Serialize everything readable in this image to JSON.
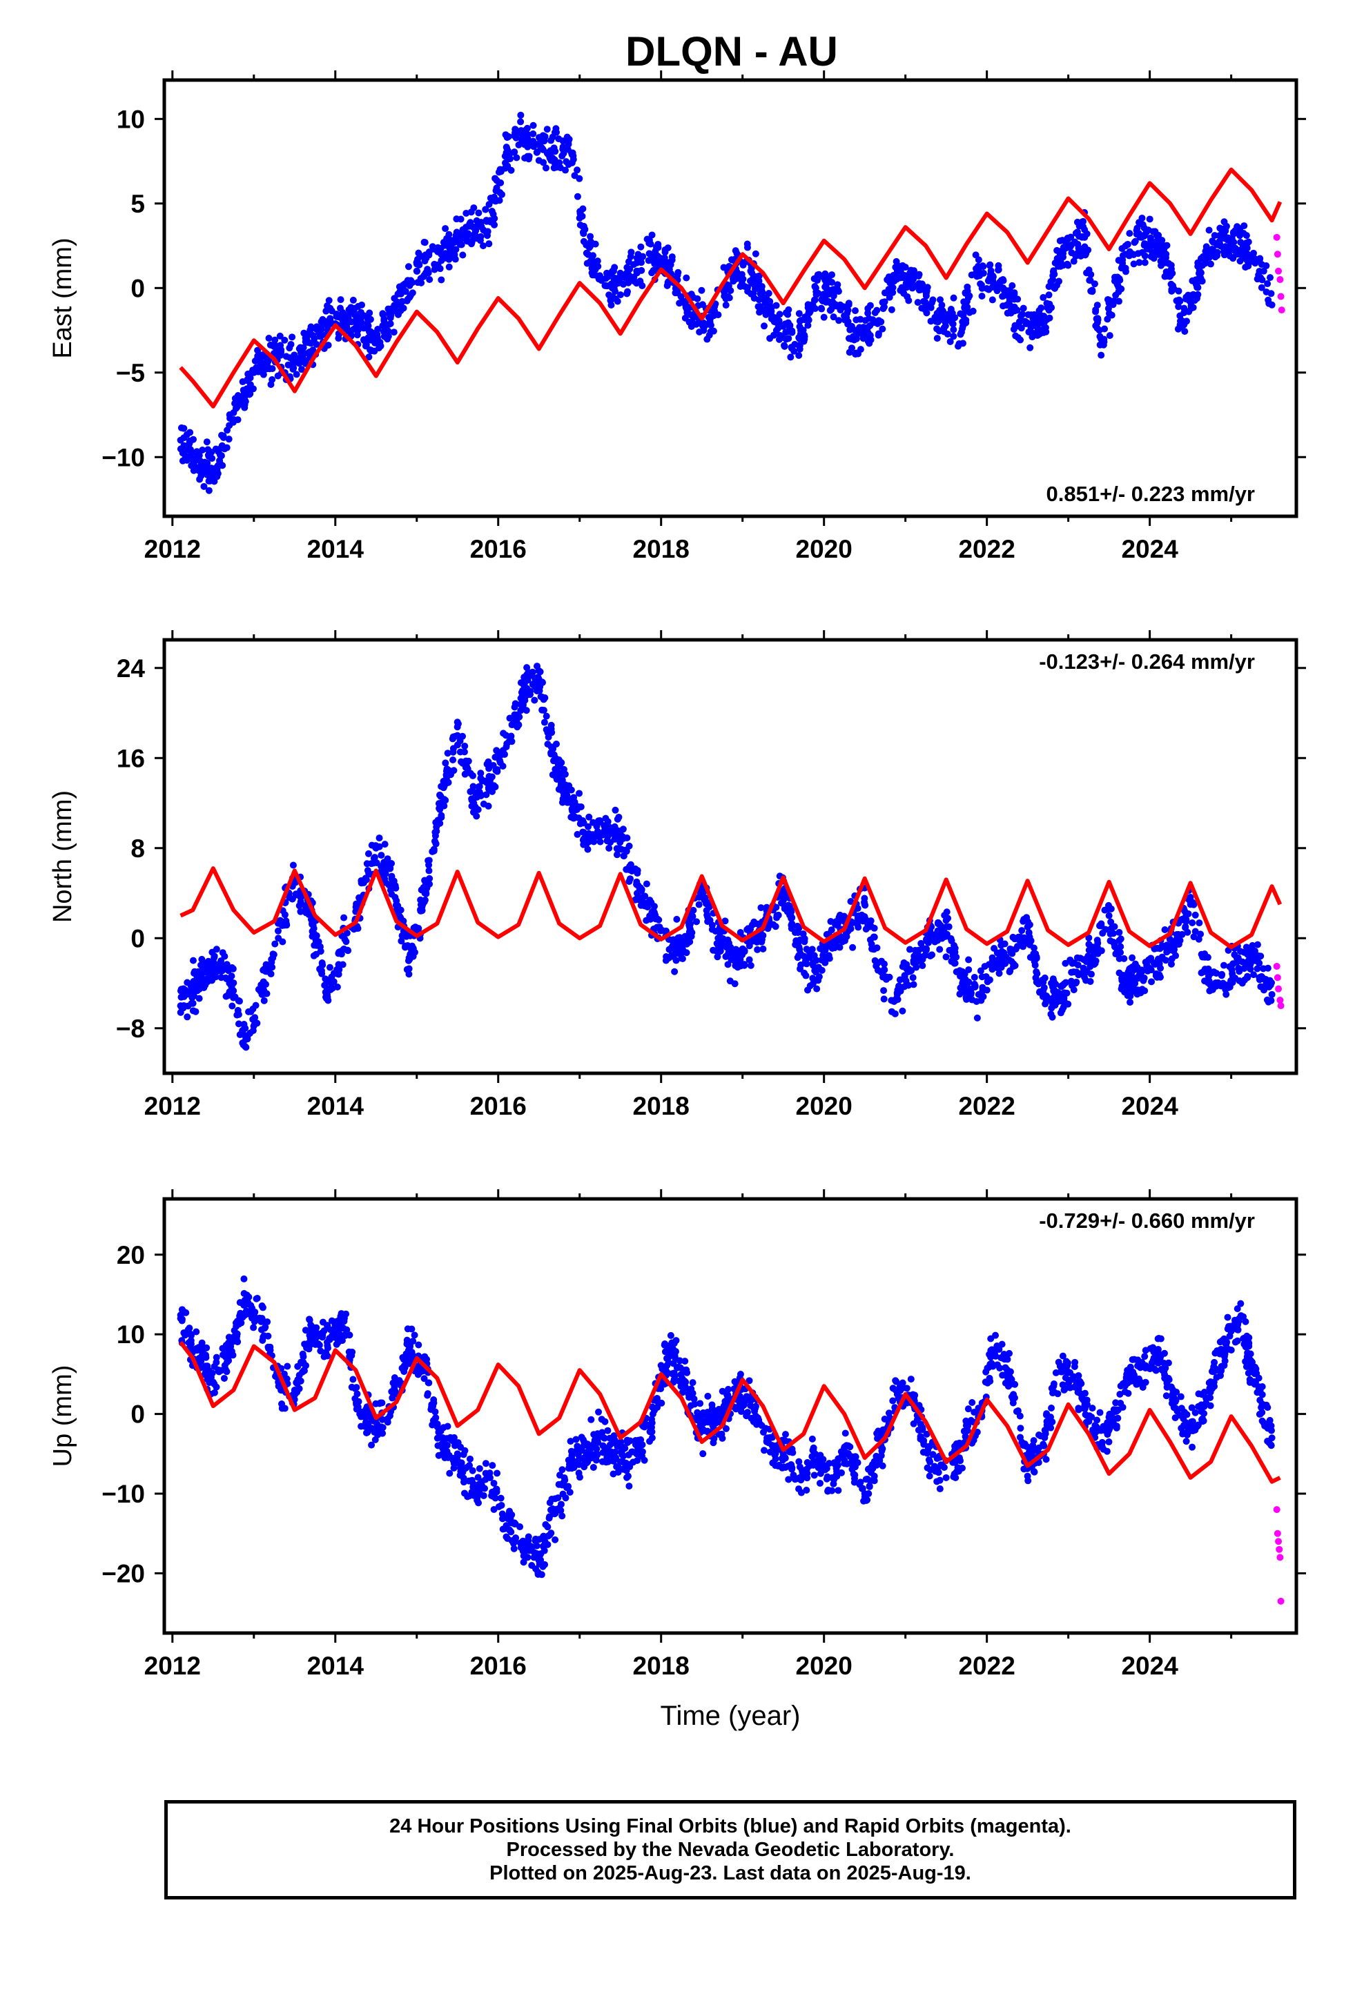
{
  "title": "DLQN - AU",
  "caption_lines": [
    "24 Hour Positions Using Final Orbits (blue) and Rapid Orbits (magenta).",
    "Processed by the Nevada Geodetic Laboratory.",
    "Plotted on 2025-Aug-23. Last data on 2025-Aug-19."
  ],
  "colors": {
    "final": "#0000ff",
    "rapid": "#ff00ff",
    "model": "#ff0000",
    "frame": "#000000"
  },
  "chart_data": [
    {
      "type": "scatter",
      "name": "east",
      "xlabel": "",
      "ylabel": "East (mm)",
      "xlim": [
        2011.9,
        2025.8
      ],
      "ylim": [
        -13.5,
        12.3
      ],
      "x_ticks": [
        2012,
        2014,
        2016,
        2018,
        2020,
        2022,
        2024
      ],
      "y_ticks": [
        -10,
        -5,
        0,
        5,
        10
      ],
      "annotation": "0.851+/- 0.223 mm/yr",
      "annotation_pos": "bottom-right",
      "series": [
        {
          "name": "final",
          "color": "#0000ff",
          "x": [
            2012.1,
            2012.3,
            2012.5,
            2012.8,
            2013.0,
            2013.3,
            2013.6,
            2013.9,
            2014.2,
            2014.5,
            2014.8,
            2015.0,
            2015.3,
            2015.6,
            2015.9,
            2016.1,
            2016.3,
            2016.6,
            2016.9,
            2017.1,
            2017.4,
            2017.7,
            2017.9,
            2018.1,
            2018.3,
            2018.6,
            2018.9,
            2019.1,
            2019.4,
            2019.7,
            2019.9,
            2020.2,
            2020.4,
            2020.7,
            2020.9,
            2021.2,
            2021.4,
            2021.7,
            2021.9,
            2022.2,
            2022.4,
            2022.7,
            2022.9,
            2023.2,
            2023.4,
            2023.7,
            2023.9,
            2024.2,
            2024.4,
            2024.7,
            2024.9,
            2025.2,
            2025.4,
            2025.5
          ],
          "y": [
            -9,
            -10,
            -11,
            -7,
            -5,
            -4,
            -4,
            -2,
            -2,
            -3,
            -1,
            1,
            2,
            3,
            4,
            8,
            9,
            8,
            8,
            2,
            0,
            1,
            2,
            1,
            -1,
            -2,
            1,
            1,
            -2,
            -3,
            0,
            -1,
            -3,
            -2,
            1,
            0,
            -2,
            -2,
            1,
            0,
            -2,
            -2,
            2,
            3,
            -3,
            2,
            3,
            2,
            -2,
            2,
            3,
            2,
            1,
            -1
          ]
        },
        {
          "name": "rapid",
          "color": "#ff00ff",
          "x": [
            2025.56,
            2025.57,
            2025.58,
            2025.6,
            2025.61,
            2025.62
          ],
          "y": [
            3,
            2,
            1,
            0.5,
            -0.5,
            -1.3
          ]
        }
      ],
      "model": {
        "x": [
          2012.1,
          2012.25,
          2012.5,
          2012.75,
          2013.0,
          2013.25,
          2013.5,
          2013.75,
          2014.0,
          2014.25,
          2014.5,
          2014.75,
          2015.0,
          2015.25,
          2015.5,
          2015.75,
          2016.0,
          2016.25,
          2016.5,
          2016.75,
          2017.0,
          2017.25,
          2017.5,
          2017.75,
          2018.0,
          2018.25,
          2018.5,
          2018.75,
          2019.0,
          2019.25,
          2019.5,
          2019.75,
          2020.0,
          2020.25,
          2020.5,
          2020.75,
          2021.0,
          2021.25,
          2021.5,
          2021.75,
          2022.0,
          2022.25,
          2022.5,
          2022.75,
          2023.0,
          2023.25,
          2023.5,
          2023.75,
          2024.0,
          2024.25,
          2024.5,
          2024.75,
          2025.0,
          2025.25,
          2025.5,
          2025.6
        ],
        "y": [
          -4.7,
          -5.5,
          -7.0,
          -5.0,
          -3.1,
          -4.2,
          -6.1,
          -4.0,
          -2.2,
          -3.4,
          -5.2,
          -3.2,
          -1.4,
          -2.6,
          -4.4,
          -2.4,
          -0.6,
          -1.8,
          -3.6,
          -1.6,
          0.3,
          -0.9,
          -2.7,
          -0.7,
          1.1,
          0.0,
          -1.8,
          0.2,
          2.0,
          0.9,
          -0.9,
          1.0,
          2.8,
          1.7,
          0.0,
          1.8,
          3.6,
          2.5,
          0.6,
          2.6,
          4.4,
          3.3,
          1.5,
          3.4,
          5.3,
          4.1,
          2.3,
          4.3,
          6.2,
          5.0,
          3.2,
          5.2,
          7.0,
          5.8,
          4.0,
          5.1
        ]
      }
    },
    {
      "type": "scatter",
      "name": "north",
      "xlabel": "",
      "ylabel": "North (mm)",
      "xlim": [
        2011.9,
        2025.8
      ],
      "ylim": [
        -12,
        26.5
      ],
      "x_ticks": [
        2012,
        2014,
        2016,
        2018,
        2020,
        2022,
        2024
      ],
      "y_ticks": [
        -8,
        0,
        8,
        16,
        24
      ],
      "annotation": "-0.123+/- 0.264 mm/yr",
      "annotation_pos": "top-right",
      "series": [
        {
          "name": "final",
          "color": "#0000ff",
          "x": [
            2012.1,
            2012.3,
            2012.5,
            2012.7,
            2012.9,
            2013.1,
            2013.3,
            2013.5,
            2013.7,
            2013.9,
            2014.1,
            2014.3,
            2014.5,
            2014.7,
            2014.9,
            2015.1,
            2015.3,
            2015.5,
            2015.7,
            2015.9,
            2016.1,
            2016.3,
            2016.5,
            2016.7,
            2016.9,
            2017.1,
            2017.3,
            2017.5,
            2017.7,
            2017.9,
            2018.1,
            2018.3,
            2018.5,
            2018.7,
            2018.9,
            2019.1,
            2019.3,
            2019.5,
            2019.7,
            2019.9,
            2020.1,
            2020.3,
            2020.5,
            2020.7,
            2020.9,
            2021.1,
            2021.3,
            2021.5,
            2021.7,
            2021.9,
            2022.1,
            2022.3,
            2022.5,
            2022.7,
            2022.9,
            2023.1,
            2023.3,
            2023.5,
            2023.7,
            2023.9,
            2024.1,
            2024.3,
            2024.5,
            2024.7,
            2024.9,
            2025.1,
            2025.3,
            2025.5
          ],
          "y": [
            -6,
            -4,
            -2,
            -4,
            -9,
            -5,
            0,
            5,
            2,
            -5,
            -1,
            3,
            8,
            5,
            -2,
            4,
            12,
            18,
            12,
            14,
            17,
            22,
            23,
            15,
            12,
            9,
            10,
            9,
            5,
            2,
            -1,
            0,
            4,
            0,
            -2,
            0,
            1,
            4,
            -1,
            -3,
            0,
            1,
            3,
            -3,
            -5,
            -2,
            0,
            1,
            -4,
            -5,
            -2,
            -1,
            1,
            -5,
            -5,
            -3,
            -2,
            2,
            -4,
            -3,
            -2,
            -1,
            3,
            -3,
            -4,
            -2,
            -2,
            -5
          ]
        },
        {
          "name": "rapid",
          "color": "#ff00ff",
          "x": [
            2025.56,
            2025.57,
            2025.58,
            2025.6,
            2025.61
          ],
          "y": [
            -2.5,
            -3.5,
            -4.5,
            -5.5,
            -6.0
          ]
        }
      ],
      "model": {
        "x": [
          2012.1,
          2012.25,
          2012.5,
          2012.75,
          2013.0,
          2013.25,
          2013.5,
          2013.75,
          2014.0,
          2014.25,
          2014.5,
          2014.75,
          2015.0,
          2015.25,
          2015.5,
          2015.75,
          2016.0,
          2016.25,
          2016.5,
          2016.75,
          2017.0,
          2017.25,
          2017.5,
          2017.75,
          2018.0,
          2018.25,
          2018.5,
          2018.75,
          2019.0,
          2019.25,
          2019.5,
          2019.75,
          2020.0,
          2020.25,
          2020.5,
          2020.75,
          2021.0,
          2021.25,
          2021.5,
          2021.75,
          2022.0,
          2022.25,
          2022.5,
          2022.75,
          2023.0,
          2023.25,
          2023.5,
          2023.75,
          2024.0,
          2024.25,
          2024.5,
          2024.75,
          2025.0,
          2025.25,
          2025.5,
          2025.6
        ],
        "y": [
          2.0,
          2.5,
          6.2,
          2.5,
          0.5,
          1.5,
          6.0,
          2.0,
          0.3,
          1.4,
          6.0,
          1.5,
          0.2,
          1.3,
          5.9,
          1.4,
          0.1,
          1.2,
          5.8,
          1.3,
          0.0,
          1.1,
          5.7,
          1.2,
          -0.1,
          1.0,
          5.5,
          1.1,
          -0.2,
          0.9,
          5.4,
          1.0,
          -0.3,
          0.8,
          5.3,
          0.9,
          -0.4,
          0.7,
          5.2,
          0.8,
          -0.5,
          0.6,
          5.1,
          0.7,
          -0.6,
          0.5,
          5.0,
          0.6,
          -0.7,
          0.4,
          4.9,
          0.5,
          -0.8,
          0.3,
          4.6,
          3.0
        ]
      }
    },
    {
      "type": "scatter",
      "name": "up",
      "xlabel": "Time (year)",
      "ylabel": "Up (mm)",
      "xlim": [
        2011.9,
        2025.8
      ],
      "ylim": [
        -27.5,
        27
      ],
      "x_ticks": [
        2012,
        2014,
        2016,
        2018,
        2020,
        2022,
        2024
      ],
      "y_ticks": [
        -20,
        -10,
        0,
        10,
        20
      ],
      "annotation": "-0.729+/- 0.660 mm/yr",
      "annotation_pos": "top-right",
      "series": [
        {
          "name": "final",
          "color": "#0000ff",
          "x": [
            2012.1,
            2012.3,
            2012.5,
            2012.7,
            2012.9,
            2013.1,
            2013.3,
            2013.5,
            2013.7,
            2013.9,
            2014.1,
            2014.3,
            2014.5,
            2014.7,
            2014.9,
            2015.1,
            2015.3,
            2015.5,
            2015.7,
            2015.9,
            2016.1,
            2016.3,
            2016.5,
            2016.7,
            2016.9,
            2017.1,
            2017.3,
            2017.5,
            2017.7,
            2017.9,
            2018.1,
            2018.3,
            2018.5,
            2018.7,
            2018.9,
            2019.1,
            2019.3,
            2019.5,
            2019.7,
            2019.9,
            2020.1,
            2020.3,
            2020.5,
            2020.7,
            2020.9,
            2021.1,
            2021.3,
            2021.5,
            2021.7,
            2021.9,
            2022.1,
            2022.3,
            2022.5,
            2022.7,
            2022.9,
            2023.1,
            2023.3,
            2023.5,
            2023.7,
            2023.9,
            2024.1,
            2024.3,
            2024.5,
            2024.7,
            2024.9,
            2025.1,
            2025.3,
            2025.5
          ],
          "y": [
            12,
            8,
            4,
            8,
            14,
            12,
            4,
            3,
            10,
            9,
            12,
            0,
            -2,
            2,
            8,
            6,
            -4,
            -5,
            -10,
            -8,
            -14,
            -16,
            -18,
            -12,
            -6,
            -4,
            -3,
            -6,
            -5,
            0,
            8,
            4,
            -2,
            -1,
            2,
            2,
            -3,
            -5,
            -8,
            -6,
            -8,
            -4,
            -10,
            -4,
            3,
            2,
            -6,
            -8,
            -4,
            0,
            8,
            4,
            -6,
            -4,
            6,
            4,
            -2,
            -2,
            4,
            6,
            8,
            2,
            -2,
            2,
            8,
            12,
            4,
            -3
          ]
        },
        {
          "name": "rapid",
          "color": "#ff00ff",
          "x": [
            2025.56,
            2025.57,
            2025.58,
            2025.59,
            2025.6,
            2025.61
          ],
          "y": [
            -12,
            -15,
            -16,
            -17,
            -18,
            -23.5
          ]
        }
      ],
      "model": {
        "x": [
          2012.1,
          2012.25,
          2012.5,
          2012.75,
          2013.0,
          2013.25,
          2013.5,
          2013.75,
          2014.0,
          2014.25,
          2014.5,
          2014.75,
          2015.0,
          2015.25,
          2015.5,
          2015.75,
          2016.0,
          2016.25,
          2016.5,
          2016.75,
          2017.0,
          2017.25,
          2017.5,
          2017.75,
          2018.0,
          2018.25,
          2018.5,
          2018.75,
          2019.0,
          2019.25,
          2019.5,
          2019.75,
          2020.0,
          2020.25,
          2020.5,
          2020.75,
          2021.0,
          2021.25,
          2021.5,
          2021.75,
          2022.0,
          2022.25,
          2022.5,
          2022.75,
          2023.0,
          2023.25,
          2023.5,
          2023.75,
          2024.0,
          2024.25,
          2024.5,
          2024.75,
          2025.0,
          2025.25,
          2025.5,
          2025.6
        ],
        "y": [
          9.0,
          7.0,
          1.0,
          3.0,
          8.5,
          6.5,
          0.5,
          2.0,
          8.0,
          5.5,
          -0.5,
          1.5,
          7.0,
          4.5,
          -1.5,
          0.5,
          6.2,
          3.5,
          -2.5,
          -0.5,
          5.5,
          2.5,
          -3.0,
          -1.0,
          5.0,
          2.0,
          -3.5,
          -1.5,
          4.3,
          1.0,
          -4.5,
          -2.5,
          3.5,
          0.0,
          -5.5,
          -3.0,
          2.5,
          -1.0,
          -6.0,
          -4.0,
          1.8,
          -1.5,
          -6.5,
          -4.5,
          1.2,
          -2.5,
          -7.5,
          -5.0,
          0.5,
          -3.5,
          -8.0,
          -6.0,
          -0.3,
          -4.0,
          -8.5,
          -8.0
        ]
      }
    }
  ]
}
